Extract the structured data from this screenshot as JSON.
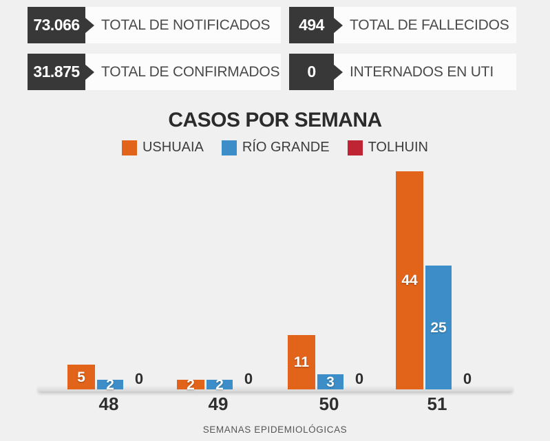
{
  "colors": {
    "background": "#f0f0f0",
    "stat_box": "#383838",
    "stat_label_box": "#fcfcfc",
    "ushuaia": "#e2631a",
    "rio_grande": "#3d8ec8",
    "tolhuin": "#be2433",
    "text_dark": "#2e2e2e"
  },
  "stats": [
    {
      "value": "73.066",
      "label": "TOTAL DE NOTIFICADOS"
    },
    {
      "value": "494",
      "label": "TOTAL DE FALLECIDOS"
    },
    {
      "value": "31.875",
      "label": "TOTAL DE CONFIRMADOS"
    },
    {
      "value": "0",
      "label": "INTERNADOS EN UTI"
    }
  ],
  "chart_data": {
    "type": "bar",
    "title": "CASOS POR SEMANA",
    "xlabel": "SEMANAS EPIDEMIOLÓGICAS",
    "ylabel": "",
    "categories": [
      "48",
      "49",
      "50",
      "51"
    ],
    "series": [
      {
        "name": "USHUAIA",
        "color": "#e2631a",
        "values": [
          5,
          2,
          11,
          44
        ]
      },
      {
        "name": "RÍO GRANDE",
        "color": "#3d8ec8",
        "values": [
          2,
          2,
          3,
          25
        ]
      },
      {
        "name": "TOLHUIN",
        "color": "#be2433",
        "values": [
          0,
          0,
          0,
          0
        ]
      }
    ],
    "value_labels": true,
    "legend_position": "top",
    "grid": false,
    "ylim": [
      0,
      44
    ]
  }
}
